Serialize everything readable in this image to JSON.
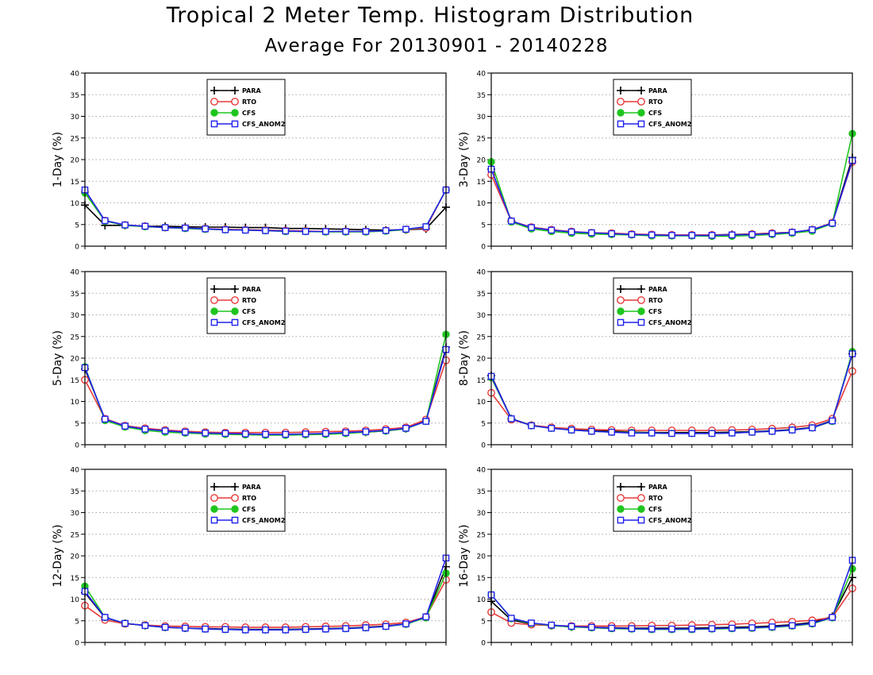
{
  "title": "Tropical 2 Meter Temp. Histogram Distribution",
  "subtitle": "Average For 20130901 - 20140228",
  "colors": {
    "PARA": "#000000",
    "RTO": "#e83b3b",
    "CFS": "#1fc51f",
    "CFS_ANOM2": "#2222ee",
    "grid": "#a8a8a8"
  },
  "chart_data": [
    {
      "type": "line",
      "ylabel": "1-Day (%)",
      "ylim": [
        0,
        40
      ],
      "yticks": [
        0,
        5,
        10,
        15,
        20,
        25,
        30,
        35,
        40
      ],
      "grid": true,
      "legend_position": "top-center",
      "series": [
        {
          "name": "PARA",
          "marker": "plus",
          "values": [
            9.5,
            4.8,
            4.8,
            4.6,
            4.6,
            4.5,
            4.4,
            4.4,
            4.3,
            4.3,
            4.1,
            4.1,
            4.0,
            3.9,
            3.8,
            3.7,
            3.8,
            4.0,
            9.0
          ]
        },
        {
          "name": "RTO",
          "marker": "open-circle",
          "values": [
            12.5,
            5.9,
            4.9,
            4.6,
            4.3,
            4.2,
            4.0,
            3.9,
            3.8,
            3.7,
            3.6,
            3.5,
            3.4,
            3.4,
            3.4,
            3.6,
            3.8,
            4.2,
            13.0
          ]
        },
        {
          "name": "CFS",
          "marker": "filled-circle",
          "values": [
            12.3,
            5.8,
            4.8,
            4.5,
            4.3,
            4.1,
            3.9,
            3.8,
            3.7,
            3.6,
            3.4,
            3.4,
            3.3,
            3.3,
            3.3,
            3.5,
            3.8,
            4.5,
            13.0
          ]
        },
        {
          "name": "CFS_ANOM2",
          "marker": "open-square",
          "values": [
            13.0,
            5.9,
            4.9,
            4.6,
            4.3,
            4.2,
            4.0,
            3.8,
            3.7,
            3.6,
            3.5,
            3.4,
            3.4,
            3.4,
            3.4,
            3.6,
            3.9,
            4.5,
            13.0
          ]
        }
      ]
    },
    {
      "type": "line",
      "ylabel": "3-Day (%)",
      "ylim": [
        0,
        40
      ],
      "yticks": [
        0,
        5,
        10,
        15,
        20,
        25,
        30,
        35,
        40
      ],
      "grid": true,
      "legend_position": "top-center",
      "series": [
        {
          "name": "PARA",
          "marker": "plus",
          "values": [
            17.8,
            5.8,
            4.3,
            3.7,
            3.3,
            3.0,
            2.9,
            2.7,
            2.6,
            2.6,
            2.6,
            2.6,
            2.7,
            2.8,
            3.0,
            3.2,
            3.8,
            5.4,
            20.5
          ]
        },
        {
          "name": "RTO",
          "marker": "open-circle",
          "values": [
            16.5,
            5.8,
            4.4,
            3.8,
            3.4,
            3.1,
            3.0,
            2.8,
            2.7,
            2.6,
            2.6,
            2.6,
            2.6,
            2.8,
            3.0,
            3.2,
            3.8,
            5.4,
            19.5
          ]
        },
        {
          "name": "CFS",
          "marker": "filled-circle",
          "values": [
            19.5,
            5.6,
            4.0,
            3.4,
            3.0,
            2.8,
            2.7,
            2.6,
            2.4,
            2.4,
            2.4,
            2.3,
            2.3,
            2.5,
            2.7,
            3.0,
            3.5,
            5.2,
            26.0
          ]
        },
        {
          "name": "CFS_ANOM2",
          "marker": "open-square",
          "values": [
            17.8,
            5.8,
            4.3,
            3.7,
            3.3,
            3.1,
            2.9,
            2.7,
            2.6,
            2.5,
            2.5,
            2.5,
            2.6,
            2.7,
            2.9,
            3.2,
            3.8,
            5.3,
            19.8
          ]
        }
      ]
    },
    {
      "type": "line",
      "ylabel": "5-Day (%)",
      "ylim": [
        0,
        40
      ],
      "yticks": [
        0,
        5,
        10,
        15,
        20,
        25,
        30,
        35,
        40
      ],
      "grid": true,
      "legend_position": "top-center",
      "series": [
        {
          "name": "PARA",
          "marker": "plus",
          "values": [
            17.5,
            5.9,
            4.3,
            3.7,
            3.2,
            2.9,
            2.7,
            2.6,
            2.4,
            2.3,
            2.3,
            2.4,
            2.5,
            2.7,
            2.9,
            3.2,
            3.7,
            5.5,
            22.5
          ]
        },
        {
          "name": "RTO",
          "marker": "open-circle",
          "values": [
            15.0,
            6.0,
            4.4,
            3.8,
            3.4,
            3.1,
            2.9,
            2.8,
            2.8,
            2.8,
            2.8,
            2.9,
            3.0,
            3.1,
            3.3,
            3.6,
            4.0,
            5.8,
            19.5
          ]
        },
        {
          "name": "CFS",
          "marker": "filled-circle",
          "values": [
            18.0,
            5.6,
            4.1,
            3.3,
            2.9,
            2.7,
            2.5,
            2.4,
            2.3,
            2.2,
            2.2,
            2.3,
            2.4,
            2.6,
            2.9,
            3.2,
            3.7,
            5.4,
            25.5
          ]
        },
        {
          "name": "CFS_ANOM2",
          "marker": "open-square",
          "values": [
            17.8,
            5.9,
            4.3,
            3.6,
            3.2,
            2.9,
            2.7,
            2.6,
            2.5,
            2.4,
            2.4,
            2.5,
            2.6,
            2.8,
            3.0,
            3.3,
            3.8,
            5.4,
            22.0
          ]
        }
      ]
    },
    {
      "type": "line",
      "ylabel": "8-Day (%)",
      "ylim": [
        0,
        40
      ],
      "yticks": [
        0,
        5,
        10,
        15,
        20,
        25,
        30,
        35,
        40
      ],
      "grid": true,
      "legend_position": "top-center",
      "series": [
        {
          "name": "PARA",
          "marker": "plus",
          "values": [
            16.0,
            6.0,
            4.5,
            3.9,
            3.5,
            3.3,
            3.1,
            2.9,
            2.8,
            2.8,
            2.8,
            2.8,
            2.9,
            3.0,
            3.2,
            3.5,
            4.0,
            5.6,
            21.0
          ]
        },
        {
          "name": "RTO",
          "marker": "open-circle",
          "values": [
            12.0,
            5.8,
            4.5,
            4.0,
            3.7,
            3.5,
            3.4,
            3.3,
            3.3,
            3.3,
            3.3,
            3.3,
            3.4,
            3.5,
            3.7,
            4.0,
            4.5,
            6.0,
            17.0
          ]
        },
        {
          "name": "CFS",
          "marker": "filled-circle",
          "values": [
            15.5,
            6.0,
            4.4,
            3.8,
            3.4,
            3.1,
            2.9,
            2.8,
            2.7,
            2.6,
            2.6,
            2.6,
            2.7,
            2.9,
            3.1,
            3.4,
            3.9,
            5.4,
            21.5
          ]
        },
        {
          "name": "CFS_ANOM2",
          "marker": "open-square",
          "values": [
            15.8,
            6.0,
            4.4,
            3.8,
            3.4,
            3.1,
            2.9,
            2.7,
            2.7,
            2.6,
            2.6,
            2.6,
            2.7,
            2.9,
            3.1,
            3.4,
            3.9,
            5.5,
            21.0
          ]
        }
      ]
    },
    {
      "type": "line",
      "ylabel": "12-Day (%)",
      "ylim": [
        0,
        40
      ],
      "yticks": [
        0,
        5,
        10,
        15,
        20,
        25,
        30,
        35,
        40
      ],
      "grid": true,
      "legend_position": "top-center",
      "series": [
        {
          "name": "PARA",
          "marker": "plus",
          "values": [
            11.5,
            5.7,
            4.4,
            3.9,
            3.5,
            3.3,
            3.2,
            3.1,
            3.0,
            3.0,
            3.0,
            3.1,
            3.2,
            3.3,
            3.5,
            3.8,
            4.3,
            5.8,
            17.5
          ]
        },
        {
          "name": "RTO",
          "marker": "open-circle",
          "values": [
            8.5,
            5.2,
            4.3,
            4.0,
            3.8,
            3.7,
            3.6,
            3.6,
            3.5,
            3.5,
            3.5,
            3.6,
            3.7,
            3.8,
            4.0,
            4.2,
            4.6,
            5.9,
            14.5
          ]
        },
        {
          "name": "CFS",
          "marker": "filled-circle",
          "values": [
            13.0,
            5.8,
            4.4,
            3.9,
            3.5,
            3.3,
            3.1,
            3.0,
            2.9,
            2.9,
            2.9,
            3.0,
            3.1,
            3.2,
            3.4,
            3.7,
            4.2,
            5.7,
            16.0
          ]
        },
        {
          "name": "CFS_ANOM2",
          "marker": "open-square",
          "values": [
            11.8,
            5.8,
            4.4,
            3.9,
            3.5,
            3.3,
            3.1,
            3.0,
            2.9,
            2.9,
            2.9,
            3.0,
            3.1,
            3.2,
            3.4,
            3.7,
            4.3,
            5.9,
            19.5
          ]
        }
      ]
    },
    {
      "type": "line",
      "ylabel": "16-Day (%)",
      "ylim": [
        0,
        40
      ],
      "yticks": [
        0,
        5,
        10,
        15,
        20,
        25,
        30,
        35,
        40
      ],
      "grid": true,
      "legend_position": "top-center",
      "series": [
        {
          "name": "PARA",
          "marker": "plus",
          "values": [
            9.5,
            5.2,
            4.3,
            3.9,
            3.6,
            3.5,
            3.4,
            3.3,
            3.3,
            3.3,
            3.3,
            3.4,
            3.5,
            3.6,
            3.8,
            4.1,
            4.6,
            6.0,
            15.0
          ]
        },
        {
          "name": "RTO",
          "marker": "open-circle",
          "values": [
            7.0,
            4.5,
            4.1,
            3.9,
            3.8,
            3.8,
            3.8,
            3.8,
            3.9,
            3.9,
            4.0,
            4.1,
            4.2,
            4.4,
            4.6,
            4.8,
            5.1,
            5.8,
            12.5
          ]
        },
        {
          "name": "CFS",
          "marker": "filled-circle",
          "values": [
            11.0,
            5.5,
            4.4,
            3.9,
            3.6,
            3.4,
            3.2,
            3.1,
            3.0,
            3.0,
            3.0,
            3.1,
            3.2,
            3.3,
            3.5,
            3.8,
            4.3,
            5.7,
            17.0
          ]
        },
        {
          "name": "CFS_ANOM2",
          "marker": "open-square",
          "values": [
            11.0,
            5.6,
            4.5,
            4.0,
            3.7,
            3.5,
            3.3,
            3.2,
            3.1,
            3.1,
            3.1,
            3.2,
            3.3,
            3.4,
            3.6,
            3.9,
            4.4,
            5.8,
            19.0
          ]
        }
      ]
    }
  ]
}
